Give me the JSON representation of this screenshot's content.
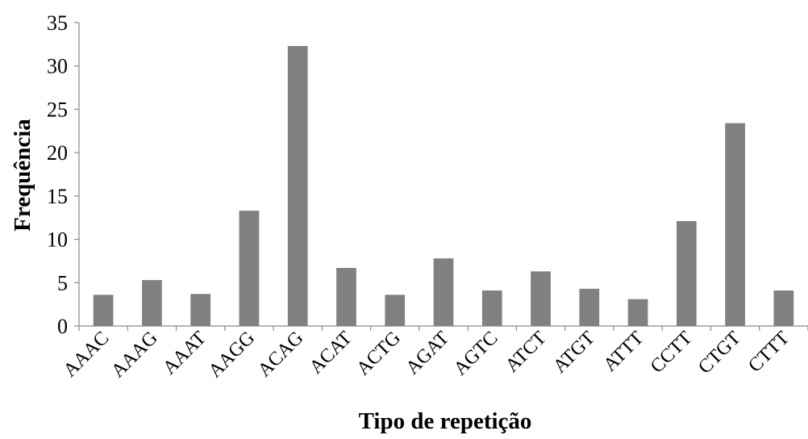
{
  "chart_data": {
    "type": "bar",
    "xlabel": "Tipo de repetição",
    "ylabel": "Frequência",
    "ylim": [
      0,
      35
    ],
    "yticks": [
      0,
      5,
      10,
      15,
      20,
      25,
      30,
      35
    ],
    "grid": false,
    "categories": [
      "AAAC",
      "AAAG",
      "AAAT",
      "AAGG",
      "ACAG",
      "ACAT",
      "ACTG",
      "AGAT",
      "AGTC",
      "ATCT",
      "ATGT",
      "ATTT",
      "CCTT",
      "CTGT",
      "CTTT"
    ],
    "values": [
      3.6,
      5.3,
      3.7,
      13.3,
      32.3,
      6.7,
      3.6,
      7.8,
      4.1,
      6.3,
      4.3,
      3.1,
      12.1,
      23.4,
      4.1
    ],
    "bar_color": "#808080"
  }
}
